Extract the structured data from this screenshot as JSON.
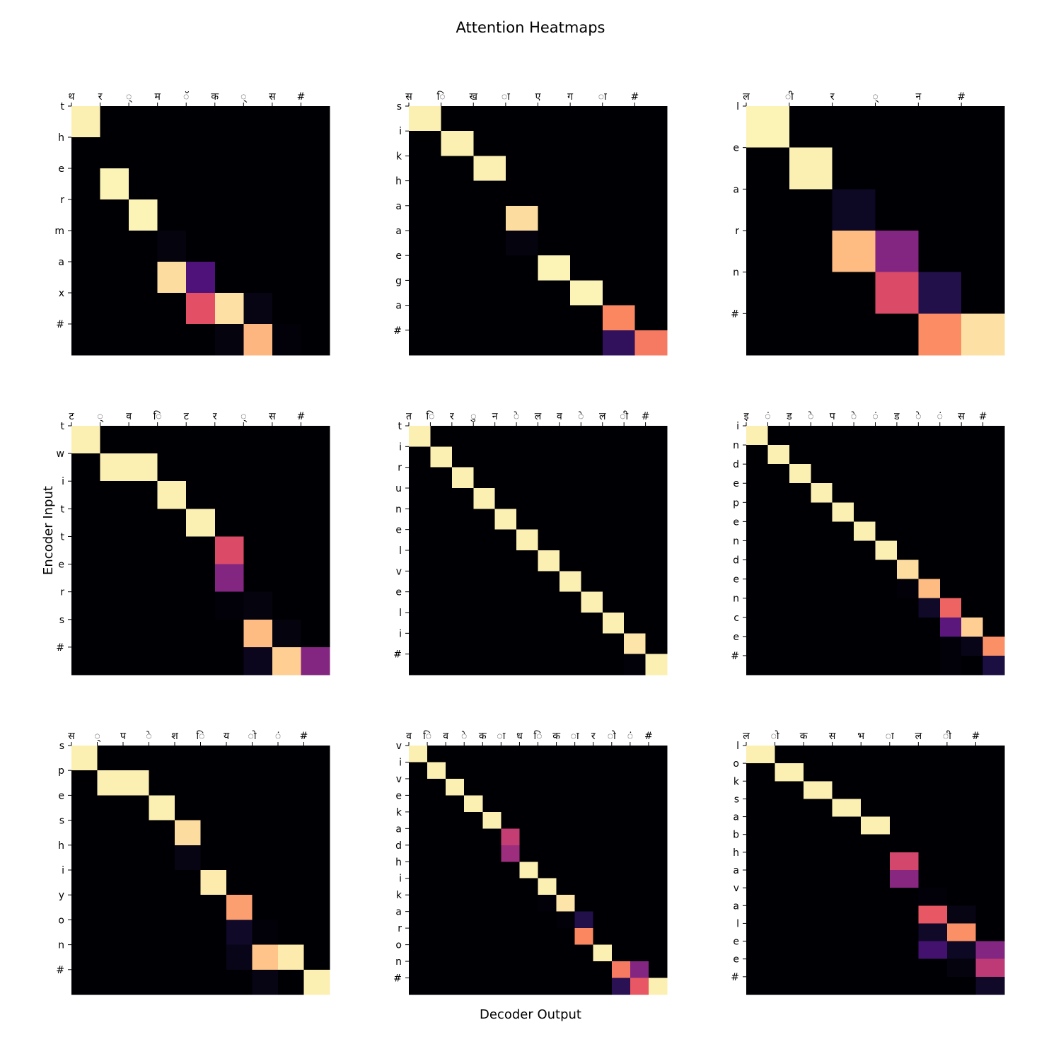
{
  "figure": {
    "title": "Attention Heatmaps",
    "xlabel": "Decoder Output",
    "ylabel": "Encoder Input",
    "colormap": "magma",
    "colormap_stops": [
      "#000004",
      "#1c1044",
      "#4f127b",
      "#812581",
      "#b5367a",
      "#e55064",
      "#fb8761",
      "#fec287",
      "#fcfdbf"
    ]
  },
  "chart_data": [
    {
      "type": "heatmap",
      "x_tick_labels": [
        "थ",
        "र",
        "्",
        "म",
        "ॅ",
        "क",
        "्",
        "स",
        "#"
      ],
      "y_tick_labels": [
        "t",
        "h",
        "e",
        "r",
        "m",
        "a",
        "x",
        "#"
      ],
      "values": [
        [
          0.97,
          0,
          0,
          0,
          0,
          0,
          0,
          0,
          0
        ],
        [
          0,
          0,
          0,
          0,
          0,
          0,
          0,
          0,
          0
        ],
        [
          0,
          0.98,
          0,
          0,
          0,
          0,
          0,
          0,
          0
        ],
        [
          0,
          0,
          0.98,
          0,
          0,
          0,
          0,
          0,
          0
        ],
        [
          0,
          0,
          0,
          0.02,
          0,
          0,
          0,
          0,
          0
        ],
        [
          0,
          0,
          0,
          0.93,
          0.25,
          0,
          0,
          0,
          0
        ],
        [
          0,
          0,
          0,
          0,
          0.62,
          0.94,
          0.03,
          0,
          0
        ],
        [
          0,
          0,
          0,
          0,
          0,
          0.02,
          0.85,
          0.01,
          0
        ]
      ]
    },
    {
      "type": "heatmap",
      "x_tick_labels": [
        "स",
        "ि",
        "ख",
        "ा",
        "ए",
        "ग",
        "ा",
        "#"
      ],
      "y_tick_labels": [
        "s",
        "i",
        "k",
        "h",
        "a",
        "a",
        "e",
        "g",
        "a",
        "#"
      ],
      "values": [
        [
          0.97,
          0,
          0,
          0,
          0,
          0,
          0,
          0
        ],
        [
          0,
          0.97,
          0,
          0,
          0,
          0,
          0,
          0
        ],
        [
          0,
          0,
          0.97,
          0,
          0,
          0,
          0,
          0
        ],
        [
          0,
          0,
          0,
          0,
          0,
          0,
          0,
          0
        ],
        [
          0,
          0,
          0,
          0.93,
          0,
          0,
          0,
          0
        ],
        [
          0,
          0,
          0,
          0.02,
          0,
          0,
          0,
          0
        ],
        [
          0,
          0,
          0,
          0,
          0.98,
          0,
          0,
          0
        ],
        [
          0,
          0,
          0,
          0,
          0,
          0.98,
          0,
          0
        ],
        [
          0,
          0,
          0,
          0,
          0,
          0,
          0.75,
          0
        ],
        [
          0,
          0,
          0,
          0,
          0,
          0,
          0.18,
          0.72
        ]
      ]
    },
    {
      "type": "heatmap",
      "x_tick_labels": [
        "ल",
        "ी",
        "र",
        "्",
        "न",
        "#"
      ],
      "y_tick_labels": [
        "l",
        "e",
        "a",
        "r",
        "n",
        "#"
      ],
      "values": [
        [
          0.98,
          0,
          0,
          0,
          0,
          0
        ],
        [
          0,
          0.97,
          0,
          0,
          0,
          0
        ],
        [
          0,
          0,
          0.06,
          0,
          0,
          0
        ],
        [
          0,
          0,
          0.86,
          0.38,
          0,
          0
        ],
        [
          0,
          0,
          0,
          0.6,
          0.14,
          0
        ],
        [
          0,
          0,
          0,
          0,
          0.76,
          0.94
        ]
      ]
    },
    {
      "type": "heatmap",
      "x_tick_labels": [
        "ट",
        "्",
        "व",
        "ि",
        "ट",
        "र",
        "्",
        "स",
        "#"
      ],
      "y_tick_labels": [
        "t",
        "w",
        "i",
        "t",
        "t",
        "e",
        "r",
        "s",
        "#"
      ],
      "values": [
        [
          0.97,
          0,
          0,
          0,
          0,
          0,
          0,
          0,
          0
        ],
        [
          0,
          0.97,
          0.97,
          0,
          0,
          0,
          0,
          0,
          0
        ],
        [
          0,
          0,
          0,
          0.97,
          0,
          0,
          0,
          0,
          0
        ],
        [
          0,
          0,
          0,
          0,
          0.97,
          0,
          0,
          0,
          0
        ],
        [
          0,
          0,
          0,
          0,
          0,
          0.6,
          0,
          0,
          0
        ],
        [
          0,
          0,
          0,
          0,
          0,
          0.38,
          0,
          0,
          0
        ],
        [
          0,
          0,
          0,
          0,
          0,
          0.01,
          0.02,
          0,
          0
        ],
        [
          0,
          0,
          0,
          0,
          0,
          0,
          0.86,
          0.02,
          0
        ],
        [
          0,
          0,
          0,
          0,
          0,
          0,
          0.05,
          0.9,
          0.38
        ]
      ]
    },
    {
      "type": "heatmap",
      "x_tick_labels": [
        "त",
        "ि",
        "र",
        "ु",
        "न",
        "े",
        "ल",
        "व",
        "े",
        "ल",
        "ी",
        "#"
      ],
      "y_tick_labels": [
        "t",
        "i",
        "r",
        "u",
        "n",
        "e",
        "l",
        "v",
        "e",
        "l",
        "i",
        "#"
      ],
      "values": [
        [
          0.97,
          0,
          0,
          0,
          0,
          0,
          0,
          0,
          0,
          0,
          0,
          0
        ],
        [
          0,
          0.97,
          0,
          0,
          0,
          0,
          0,
          0,
          0,
          0,
          0,
          0
        ],
        [
          0,
          0,
          0.97,
          0,
          0,
          0,
          0,
          0,
          0,
          0,
          0,
          0
        ],
        [
          0,
          0,
          0,
          0.97,
          0,
          0,
          0,
          0,
          0,
          0,
          0,
          0
        ],
        [
          0,
          0,
          0,
          0,
          0.97,
          0,
          0,
          0,
          0,
          0,
          0,
          0
        ],
        [
          0,
          0,
          0,
          0,
          0,
          0.97,
          0,
          0,
          0,
          0,
          0,
          0
        ],
        [
          0,
          0,
          0,
          0,
          0,
          0,
          0.97,
          0,
          0,
          0,
          0,
          0
        ],
        [
          0,
          0,
          0,
          0,
          0,
          0,
          0,
          0.97,
          0,
          0,
          0,
          0
        ],
        [
          0,
          0,
          0,
          0,
          0,
          0,
          0,
          0,
          0.97,
          0,
          0,
          0
        ],
        [
          0,
          0,
          0,
          0,
          0,
          0,
          0,
          0,
          0,
          0.97,
          0,
          0
        ],
        [
          0,
          0,
          0,
          0,
          0,
          0,
          0,
          0,
          0,
          0,
          0.95,
          0
        ],
        [
          0,
          0,
          0,
          0,
          0,
          0,
          0,
          0,
          0,
          0,
          0.01,
          0.97
        ]
      ]
    },
    {
      "type": "heatmap",
      "x_tick_labels": [
        "इ",
        "ं",
        "ड",
        "े",
        "प",
        "े",
        "ं",
        "ड",
        "े",
        "ं",
        "स",
        "#"
      ],
      "y_tick_labels": [
        "i",
        "n",
        "d",
        "e",
        "p",
        "e",
        "n",
        "d",
        "e",
        "n",
        "c",
        "e",
        "#"
      ],
      "values": [
        [
          0.97,
          0,
          0,
          0,
          0,
          0,
          0,
          0,
          0,
          0,
          0,
          0
        ],
        [
          0,
          0.97,
          0,
          0,
          0,
          0,
          0,
          0,
          0,
          0,
          0,
          0
        ],
        [
          0,
          0,
          0.97,
          0,
          0,
          0,
          0,
          0,
          0,
          0,
          0,
          0
        ],
        [
          0,
          0,
          0,
          0.97,
          0,
          0,
          0,
          0,
          0,
          0,
          0,
          0
        ],
        [
          0,
          0,
          0,
          0,
          0.97,
          0,
          0,
          0,
          0,
          0,
          0,
          0
        ],
        [
          0,
          0,
          0,
          0,
          0,
          0.97,
          0,
          0,
          0,
          0,
          0,
          0
        ],
        [
          0,
          0,
          0,
          0,
          0,
          0,
          0.97,
          0,
          0,
          0,
          0,
          0
        ],
        [
          0,
          0,
          0,
          0,
          0,
          0,
          0,
          0.93,
          0,
          0,
          0,
          0
        ],
        [
          0,
          0,
          0,
          0,
          0,
          0,
          0,
          0.01,
          0.86,
          0,
          0,
          0
        ],
        [
          0,
          0,
          0,
          0,
          0,
          0,
          0,
          0,
          0.07,
          0.67,
          0,
          0
        ],
        [
          0,
          0,
          0,
          0,
          0,
          0,
          0,
          0,
          0,
          0.28,
          0.9,
          0
        ],
        [
          0,
          0,
          0,
          0,
          0,
          0,
          0,
          0,
          0,
          0.01,
          0.04,
          0.77
        ],
        [
          0,
          0,
          0,
          0,
          0,
          0,
          0,
          0,
          0,
          0.01,
          0,
          0.12
        ]
      ]
    },
    {
      "type": "heatmap",
      "x_tick_labels": [
        "स",
        "्",
        "प",
        "े",
        "श",
        "ि",
        "य",
        "ो",
        "ं",
        "#"
      ],
      "y_tick_labels": [
        "s",
        "p",
        "e",
        "s",
        "h",
        "i",
        "y",
        "o",
        "n",
        "#"
      ],
      "values": [
        [
          0.97,
          0,
          0,
          0,
          0,
          0,
          0,
          0,
          0,
          0
        ],
        [
          0,
          0.97,
          0.97,
          0,
          0,
          0,
          0,
          0,
          0,
          0
        ],
        [
          0,
          0,
          0,
          0.97,
          0,
          0,
          0,
          0,
          0,
          0
        ],
        [
          0,
          0,
          0,
          0,
          0.93,
          0,
          0,
          0,
          0,
          0
        ],
        [
          0,
          0,
          0,
          0,
          0.03,
          0,
          0,
          0,
          0,
          0
        ],
        [
          0,
          0,
          0,
          0,
          0,
          0.96,
          0,
          0,
          0,
          0
        ],
        [
          0,
          0,
          0,
          0,
          0,
          0,
          0.8,
          0,
          0,
          0
        ],
        [
          0,
          0,
          0,
          0,
          0,
          0,
          0.07,
          0.01,
          0,
          0
        ],
        [
          0,
          0,
          0,
          0,
          0,
          0,
          0.04,
          0.88,
          0.96,
          0
        ],
        [
          0,
          0,
          0,
          0,
          0,
          0,
          0,
          0.03,
          0,
          0.97
        ]
      ]
    },
    {
      "type": "heatmap",
      "x_tick_labels": [
        "व",
        "ि",
        "व",
        "े",
        "क",
        "ा",
        "ध",
        "ि",
        "क",
        "ा",
        "र",
        "ो",
        "ं",
        "#"
      ],
      "y_tick_labels": [
        "v",
        "i",
        "v",
        "e",
        "k",
        "a",
        "d",
        "h",
        "i",
        "k",
        "a",
        "r",
        "o",
        "n",
        "#"
      ],
      "values": [
        [
          0.97,
          0,
          0,
          0,
          0,
          0,
          0,
          0,
          0,
          0,
          0,
          0,
          0,
          0
        ],
        [
          0,
          0.97,
          0,
          0,
          0,
          0,
          0,
          0,
          0,
          0,
          0,
          0,
          0,
          0
        ],
        [
          0,
          0,
          0.97,
          0,
          0,
          0,
          0,
          0,
          0,
          0,
          0,
          0,
          0,
          0
        ],
        [
          0,
          0,
          0,
          0.97,
          0,
          0,
          0,
          0,
          0,
          0,
          0,
          0,
          0,
          0
        ],
        [
          0,
          0,
          0,
          0,
          0.97,
          0,
          0,
          0,
          0,
          0,
          0,
          0,
          0,
          0
        ],
        [
          0,
          0,
          0,
          0,
          0,
          0.54,
          0,
          0,
          0,
          0,
          0,
          0,
          0,
          0
        ],
        [
          0,
          0,
          0,
          0,
          0,
          0.44,
          0,
          0,
          0,
          0,
          0,
          0,
          0,
          0
        ],
        [
          0,
          0,
          0,
          0,
          0,
          0,
          0.97,
          0,
          0,
          0,
          0,
          0,
          0,
          0
        ],
        [
          0,
          0,
          0,
          0,
          0,
          0,
          0,
          0.97,
          0,
          0,
          0,
          0,
          0,
          0
        ],
        [
          0,
          0,
          0,
          0,
          0,
          0,
          0,
          0.01,
          0.95,
          0,
          0,
          0,
          0,
          0
        ],
        [
          0,
          0,
          0,
          0,
          0,
          0,
          0,
          0,
          0.01,
          0.14,
          0,
          0,
          0,
          0
        ],
        [
          0,
          0,
          0,
          0,
          0,
          0,
          0,
          0,
          0,
          0.75,
          0,
          0,
          0,
          0
        ],
        [
          0,
          0,
          0,
          0,
          0,
          0,
          0,
          0,
          0,
          0,
          0.97,
          0,
          0,
          0
        ],
        [
          0,
          0,
          0,
          0,
          0,
          0,
          0,
          0,
          0,
          0,
          0,
          0.72,
          0.38,
          0
        ],
        [
          0,
          0,
          0,
          0,
          0,
          0,
          0,
          0,
          0,
          0,
          0,
          0.16,
          0.64,
          0.97
        ]
      ]
    },
    {
      "type": "heatmap",
      "x_tick_labels": [
        "ल",
        "ो",
        "क",
        "स",
        "भ",
        "ा",
        "ल",
        "ी",
        "#"
      ],
      "y_tick_labels": [
        "l",
        "o",
        "k",
        "s",
        "a",
        "b",
        "h",
        "a",
        "v",
        "a",
        "l",
        "e",
        "e",
        "#"
      ],
      "values": [
        [
          0.97,
          0,
          0,
          0,
          0,
          0,
          0,
          0,
          0
        ],
        [
          0,
          0.97,
          0,
          0,
          0,
          0,
          0,
          0,
          0
        ],
        [
          0,
          0,
          0.97,
          0,
          0,
          0,
          0,
          0,
          0
        ],
        [
          0,
          0,
          0,
          0.97,
          0,
          0,
          0,
          0,
          0
        ],
        [
          0,
          0,
          0,
          0,
          0.97,
          0,
          0,
          0,
          0
        ],
        [
          0,
          0,
          0,
          0,
          0,
          0,
          0,
          0,
          0
        ],
        [
          0,
          0,
          0,
          0,
          0,
          0.58,
          0,
          0,
          0
        ],
        [
          0,
          0,
          0,
          0,
          0,
          0.39,
          0,
          0,
          0
        ],
        [
          0,
          0,
          0,
          0,
          0,
          0,
          0.01,
          0,
          0
        ],
        [
          0,
          0,
          0,
          0,
          0,
          0,
          0.64,
          0.03,
          0
        ],
        [
          0,
          0,
          0,
          0,
          0,
          0,
          0.07,
          0.77,
          0
        ],
        [
          0,
          0,
          0,
          0,
          0,
          0,
          0.22,
          0.06,
          0.38
        ],
        [
          0,
          0,
          0,
          0,
          0,
          0,
          0,
          0.02,
          0.52
        ],
        [
          0,
          0,
          0,
          0,
          0,
          0,
          0,
          0,
          0.07
        ]
      ]
    }
  ]
}
